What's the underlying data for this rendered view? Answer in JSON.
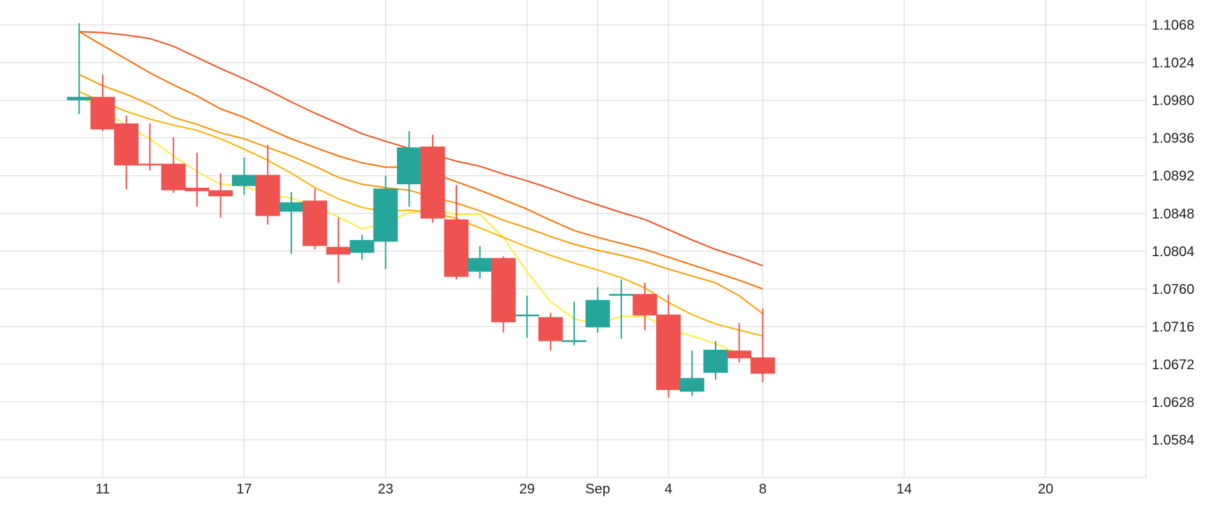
{
  "chart_data": {
    "type": "candlestick",
    "title": "",
    "xlabel": "",
    "ylabel": "",
    "ylim": [
      1.054,
      1.1097
    ],
    "grid": true,
    "y_ticks": [
      "1.1068",
      "1.1024",
      "1.0980",
      "1.0936",
      "1.0892",
      "1.0848",
      "1.0804",
      "1.0760",
      "1.0716",
      "1.0672",
      "1.0628",
      "1.0584"
    ],
    "x_ticks": [
      {
        "label": "11",
        "date": "2023-08-11"
      },
      {
        "label": "17",
        "date": "2023-08-17"
      },
      {
        "label": "23",
        "date": "2023-08-23"
      },
      {
        "label": "29",
        "date": "2023-08-29"
      },
      {
        "label": "Sep",
        "date": "2023-09-01"
      },
      {
        "label": "4",
        "date": "2023-09-04"
      },
      {
        "label": "8",
        "date": "2023-09-08"
      },
      {
        "label": "14",
        "date": "2023-09-14"
      },
      {
        "label": "20",
        "date": "2023-09-20"
      }
    ],
    "colors": {
      "up": "#26a69a",
      "down": "#ef5350",
      "grid": "#e3e3e3"
    },
    "candles": [
      {
        "date": "2023-08-10",
        "open": 1.098,
        "high": 1.107,
        "low": 1.0964,
        "close": 1.0984
      },
      {
        "date": "2023-08-11",
        "open": 1.0984,
        "high": 1.101,
        "low": 1.0944,
        "close": 1.0946
      },
      {
        "date": "2023-08-12",
        "open": 1.0953,
        "high": 1.0962,
        "low": 1.0876,
        "close": 1.0904
      },
      {
        "date": "2023-08-13",
        "open": 1.0906,
        "high": 1.0953,
        "low": 1.0898,
        "close": 1.0904
      },
      {
        "date": "2023-08-14",
        "open": 1.0906,
        "high": 1.0937,
        "low": 1.0872,
        "close": 1.0875
      },
      {
        "date": "2023-08-15",
        "open": 1.0878,
        "high": 1.0919,
        "low": 1.0856,
        "close": 1.0874
      },
      {
        "date": "2023-08-16",
        "open": 1.0875,
        "high": 1.0895,
        "low": 1.0843,
        "close": 1.0868
      },
      {
        "date": "2023-08-17",
        "open": 1.088,
        "high": 1.0913,
        "low": 1.087,
        "close": 1.0893
      },
      {
        "date": "2023-08-18",
        "open": 1.0893,
        "high": 1.0928,
        "low": 1.0835,
        "close": 1.0845
      },
      {
        "date": "2023-08-19",
        "open": 1.085,
        "high": 1.0873,
        "low": 1.0801,
        "close": 1.0861
      },
      {
        "date": "2023-08-20",
        "open": 1.0863,
        "high": 1.0877,
        "low": 1.0806,
        "close": 1.081
      },
      {
        "date": "2023-08-21",
        "open": 1.0809,
        "high": 1.0843,
        "low": 1.0767,
        "close": 1.08
      },
      {
        "date": "2023-08-22",
        "open": 1.0802,
        "high": 1.0823,
        "low": 1.0794,
        "close": 1.0817
      },
      {
        "date": "2023-08-23",
        "open": 1.0815,
        "high": 1.0892,
        "low": 1.0783,
        "close": 1.0877
      },
      {
        "date": "2023-08-24",
        "open": 1.0882,
        "high": 1.0944,
        "low": 1.0856,
        "close": 1.0925
      },
      {
        "date": "2023-08-25",
        "open": 1.0926,
        "high": 1.094,
        "low": 1.0837,
        "close": 1.0842
      },
      {
        "date": "2023-08-26",
        "open": 1.0841,
        "high": 1.0881,
        "low": 1.0771,
        "close": 1.0774
      },
      {
        "date": "2023-08-27",
        "open": 1.078,
        "high": 1.081,
        "low": 1.0772,
        "close": 1.0796
      },
      {
        "date": "2023-08-28",
        "open": 1.0796,
        "high": 1.0798,
        "low": 1.0709,
        "close": 1.0721
      },
      {
        "date": "2023-08-29",
        "open": 1.073,
        "high": 1.0752,
        "low": 1.0703,
        "close": 1.073
      },
      {
        "date": "2023-08-30",
        "open": 1.0727,
        "high": 1.0732,
        "low": 1.0688,
        "close": 1.0699
      },
      {
        "date": "2023-08-31",
        "open": 1.0698,
        "high": 1.0745,
        "low": 1.0694,
        "close": 1.07
      },
      {
        "date": "2023-09-01",
        "open": 1.0715,
        "high": 1.0762,
        "low": 1.0709,
        "close": 1.0747
      },
      {
        "date": "2023-09-02",
        "open": 1.0752,
        "high": 1.0771,
        "low": 1.0702,
        "close": 1.0754
      },
      {
        "date": "2023-09-03",
        "open": 1.0754,
        "high": 1.0767,
        "low": 1.0712,
        "close": 1.0729
      },
      {
        "date": "2023-09-04",
        "open": 1.073,
        "high": 1.0753,
        "low": 1.0633,
        "close": 1.0642
      },
      {
        "date": "2023-09-05",
        "open": 1.064,
        "high": 1.0688,
        "low": 1.0635,
        "close": 1.0656
      },
      {
        "date": "2023-09-06",
        "open": 1.0662,
        "high": 1.0699,
        "low": 1.0654,
        "close": 1.0689
      },
      {
        "date": "2023-09-07",
        "open": 1.0688,
        "high": 1.072,
        "low": 1.0674,
        "close": 1.0679
      },
      {
        "date": "2023-09-08",
        "open": 1.068,
        "high": 1.0737,
        "low": 1.0651,
        "close": 1.0661
      }
    ],
    "moving_averages": [
      {
        "color": "#ffeb3b",
        "values": [
          1.0984,
          1.097,
          1.095,
          1.0935,
          1.0915,
          1.0897,
          1.0882,
          1.088,
          1.087,
          1.0866,
          1.0856,
          1.0844,
          1.083,
          1.0837,
          1.0849,
          1.0852,
          1.0847,
          1.0847,
          1.082,
          1.078,
          1.0745,
          1.0725,
          1.0719,
          1.0728,
          1.0728,
          1.0713,
          1.0705,
          1.0696,
          1.0684,
          1.0673
        ]
      },
      {
        "color": "#ffb300",
        "values": [
          1.099,
          1.0978,
          1.0967,
          1.0958,
          1.0951,
          1.0945,
          1.0935,
          1.0923,
          1.091,
          1.0895,
          1.0878,
          1.0865,
          1.0855,
          1.085,
          1.0852,
          1.0849,
          1.0842,
          1.0831,
          1.082,
          1.0809,
          1.0799,
          1.079,
          1.0782,
          1.0773,
          1.0761,
          1.0744,
          1.073,
          1.0719,
          1.0712,
          1.0705
        ]
      },
      {
        "color": "#ff9800",
        "values": [
          1.101,
          1.0997,
          1.0987,
          1.0975,
          1.096,
          1.0952,
          1.0942,
          1.0935,
          1.0925,
          1.0915,
          1.0903,
          1.089,
          1.0882,
          1.0878,
          1.0875,
          1.0867,
          1.086,
          1.0851,
          1.084,
          1.0831,
          1.0821,
          1.0812,
          1.0805,
          1.0799,
          1.0792,
          1.0783,
          1.0775,
          1.0767,
          1.0752,
          1.0731
        ]
      },
      {
        "color": "#ff6d00",
        "values": [
          1.106,
          1.1044,
          1.1028,
          1.1012,
          1.0998,
          1.0985,
          1.097,
          1.096,
          1.0947,
          1.0935,
          1.0925,
          1.0915,
          1.0907,
          1.0902,
          1.0902,
          1.0895,
          1.0885,
          1.0875,
          1.0864,
          1.0853,
          1.084,
          1.0828,
          1.082,
          1.0813,
          1.0806,
          1.0797,
          1.0788,
          1.0779,
          1.077,
          1.076
        ]
      },
      {
        "color": "#f4511e",
        "values": [
          1.106,
          1.1059,
          1.1056,
          1.1052,
          1.1043,
          1.103,
          1.1017,
          1.1005,
          1.0992,
          1.0978,
          1.0965,
          1.0953,
          1.0941,
          1.0932,
          1.0924,
          1.0917,
          1.0909,
          1.0903,
          1.0894,
          1.0886,
          1.0877,
          1.0867,
          1.0858,
          1.0849,
          1.0841,
          1.0829,
          1.0817,
          1.0806,
          1.0797,
          1.0787
        ]
      }
    ]
  }
}
